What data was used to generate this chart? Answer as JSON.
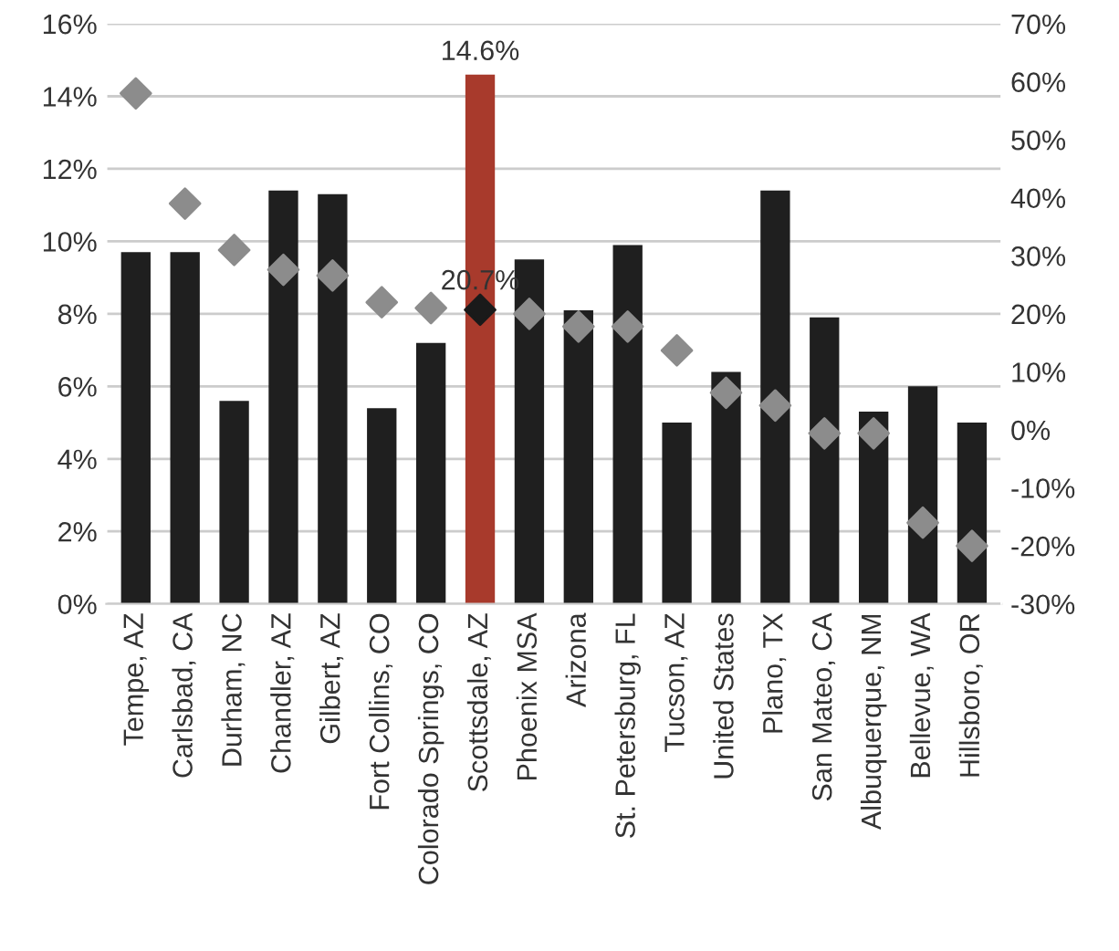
{
  "chart_data": {
    "type": "bar",
    "categories": [
      "Tempe, AZ",
      "Carlsbad, CA",
      "Durham, NC",
      "Chandler, AZ",
      "Gilbert, AZ",
      "Fort Collins, CO",
      "Colorado Springs, CO",
      "Scottsdale, AZ",
      "Phoenix MSA",
      "Arizona",
      "St. Petersburg, FL",
      "Tucson, AZ",
      "United States",
      "Plano, TX",
      "San Mateo, CA",
      "Albuquerque, NM",
      "Bellevue, WA",
      "Hillsboro, OR"
    ],
    "series": [
      {
        "colors": [
          "#1f1f1f",
          "#1f1f1f",
          "#1f1f1f",
          "#1f1f1f",
          "#1f1f1f",
          "#1f1f1f",
          "#1f1f1f",
          "#a83a2c",
          "#1f1f1f",
          "#1f1f1f",
          "#1f1f1f",
          "#1f1f1f",
          "#1f1f1f",
          "#1f1f1f",
          "#1f1f1f",
          "#1f1f1f",
          "#1f1f1f",
          "#1f1f1f"
        ],
        "values": [
          9.7,
          9.7,
          5.6,
          11.4,
          11.3,
          5.4,
          7.2,
          14.6,
          9.5,
          8.1,
          9.9,
          5.0,
          6.4,
          11.4,
          7.9,
          5.3,
          6.0,
          5.0
        ],
        "value_labels": [
          null,
          null,
          null,
          null,
          null,
          null,
          null,
          "14.6%",
          null,
          null,
          null,
          null,
          null,
          null,
          null,
          null,
          null,
          null
        ]
      },
      {
        "type": "scatter",
        "axis": "y2",
        "marker": "diamond",
        "colors": [
          "#8c8c8c",
          "#8c8c8c",
          "#8c8c8c",
          "#8c8c8c",
          "#8c8c8c",
          "#8c8c8c",
          "#8c8c8c",
          "#1a1a1a",
          "#8c8c8c",
          "#8c8c8c",
          "#8c8c8c",
          "#8c8c8c",
          "#8c8c8c",
          "#8c8c8c",
          "#8c8c8c",
          "#8c8c8c",
          "#8c8c8c",
          "#8c8c8c"
        ],
        "values": [
          58,
          39,
          31,
          27.6,
          26.6,
          22,
          21,
          20.7,
          20,
          17.8,
          17.8,
          13.7,
          6.4,
          4.2,
          -0.6,
          -0.6,
          -16,
          -20
        ],
        "value_labels": [
          null,
          null,
          null,
          null,
          null,
          null,
          null,
          "20.7%",
          null,
          null,
          null,
          null,
          null,
          null,
          null,
          null,
          null,
          null
        ]
      }
    ],
    "ylim": [
      0,
      16
    ],
    "yticks": [
      {
        "value": 0,
        "label": "0%"
      },
      {
        "value": 2,
        "label": "2%"
      },
      {
        "value": 4,
        "label": "4%"
      },
      {
        "value": 6,
        "label": "6%"
      },
      {
        "value": 8,
        "label": "8%"
      },
      {
        "value": 10,
        "label": "10%"
      },
      {
        "value": 12,
        "label": "12%"
      },
      {
        "value": 14,
        "label": "14%"
      },
      {
        "value": 16,
        "label": "16%"
      }
    ],
    "y2lim": [
      -30,
      70
    ],
    "y2ticks": [
      {
        "value": -30,
        "label": "-30%"
      },
      {
        "value": -20,
        "label": "-20%"
      },
      {
        "value": -10,
        "label": "-10%"
      },
      {
        "value": 0,
        "label": "0%"
      },
      {
        "value": 10,
        "label": "10%"
      },
      {
        "value": 20,
        "label": "20%"
      },
      {
        "value": 30,
        "label": "30%"
      },
      {
        "value": 40,
        "label": "40%"
      },
      {
        "value": 50,
        "label": "50%"
      },
      {
        "value": 60,
        "label": "60%"
      },
      {
        "value": 70,
        "label": "70%"
      }
    ],
    "grid": "y"
  }
}
